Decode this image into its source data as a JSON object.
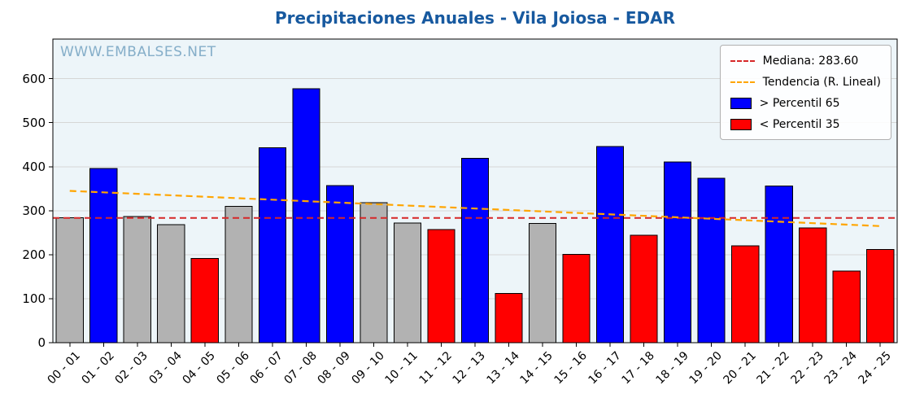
{
  "page": {
    "watermark": "WWW.EMBALSES.NET"
  },
  "legend": {
    "median_label": "Mediana: 283.60",
    "trend_label": "Tendencia (R. Lineal)",
    "p65_label": "> Percentil 65",
    "p35_label": "< Percentil 35"
  },
  "colors": {
    "title": "#17599f",
    "watermark": "#85aec9",
    "plot_bg": "#edf5f9",
    "grid": "#d6d6d6",
    "bar_blue": "#0000ff",
    "bar_red": "#ff0000",
    "bar_gray": "#b2b2b2",
    "bar_edge": "#000000",
    "median_line": "#d62728",
    "trend_line": "#ffa500",
    "axis": "#000000"
  },
  "chart_data": {
    "type": "bar",
    "title": "Precipitaciones Anuales - Vila Joiosa - EDAR",
    "xlabel": "",
    "ylabel": "",
    "categories": [
      "00 - 01",
      "01 - 02",
      "02 - 03",
      "03 - 04",
      "04 - 05",
      "05 - 06",
      "06 - 07",
      "07 - 08",
      "08 - 09",
      "09 - 10",
      "10 - 11",
      "11 - 12",
      "12 - 13",
      "13 - 14",
      "14 - 15",
      "15 - 16",
      "16 - 17",
      "17 - 18",
      "18 - 19",
      "19 - 20",
      "20 - 21",
      "21 - 22",
      "22 - 23",
      "23 - 24",
      "24 - 25"
    ],
    "values": [
      284,
      396,
      287,
      268,
      191,
      310,
      443,
      577,
      357,
      318,
      272,
      257,
      419,
      112,
      271,
      201,
      446,
      244,
      411,
      374,
      220,
      356,
      261,
      163,
      212
    ],
    "bar_colors": [
      "gray",
      "blue",
      "gray",
      "gray",
      "red",
      "gray",
      "blue",
      "blue",
      "blue",
      "gray",
      "gray",
      "red",
      "blue",
      "red",
      "gray",
      "red",
      "blue",
      "red",
      "blue",
      "blue",
      "red",
      "blue",
      "red",
      "red",
      "red"
    ],
    "median": 283.6,
    "trend": {
      "start_value": 345,
      "end_value": 265
    },
    "yticks": [
      0,
      100,
      200,
      300,
      400,
      500,
      600
    ],
    "ylim": [
      0,
      690
    ],
    "grid": true,
    "legend_position": "upper right"
  }
}
